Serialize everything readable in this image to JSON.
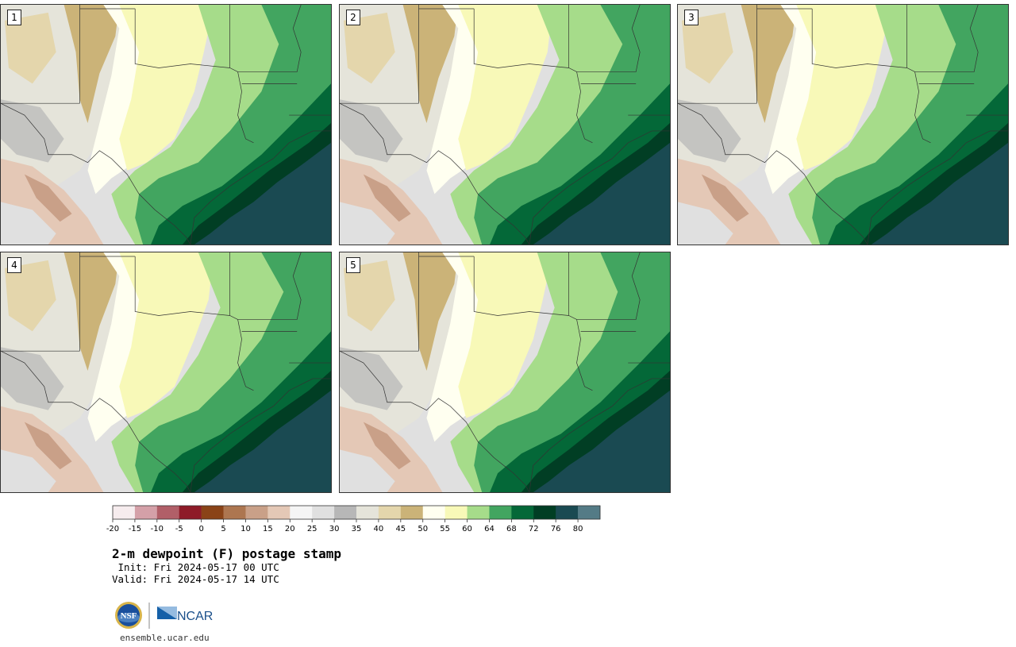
{
  "panels": [
    {
      "label": "1",
      "variant": 0
    },
    {
      "label": "2",
      "variant": 1
    },
    {
      "label": "3",
      "variant": 2
    },
    {
      "label": "4",
      "variant": 3
    },
    {
      "label": "5",
      "variant": 4
    }
  ],
  "colorbar": {
    "ticks": [
      "-20",
      "-15",
      "-10",
      "-5",
      "0",
      "5",
      "10",
      "15",
      "20",
      "25",
      "30",
      "35",
      "40",
      "45",
      "50",
      "55",
      "60",
      "64",
      "68",
      "72",
      "76",
      "80"
    ],
    "colors": [
      "#f6ecee",
      "#d4a0a8",
      "#b15f68",
      "#8e1b28",
      "#8a4317",
      "#ad7650",
      "#c9a088",
      "#e4c8b6",
      "#f5f5f5",
      "#e0e0e0",
      "#b7b7b7",
      "#e5e4da",
      "#e4d6ac",
      "#cbb378",
      "#fffff0",
      "#f8f9b8",
      "#a6dc8a",
      "#42a560",
      "#046838",
      "#013e24",
      "#1a4a52",
      "#547b86"
    ]
  },
  "title": "2-m dewpoint (F) postage stamp",
  "init": " Init: Fri 2024-05-17 00 UTC",
  "valid": "Valid: Fri 2024-05-17 14 UTC",
  "logos": {
    "left": "NSF",
    "right": "NCAR"
  },
  "site": "ensemble.ucar.edu"
}
